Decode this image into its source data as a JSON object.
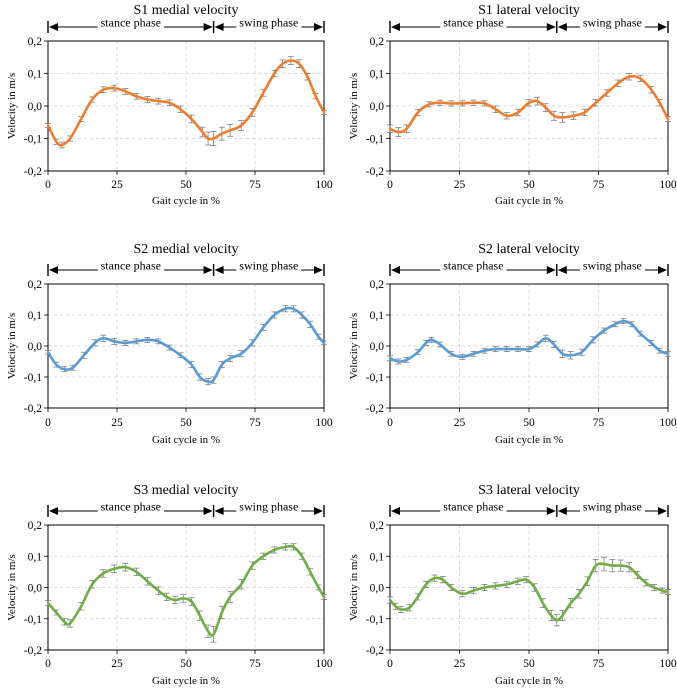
{
  "chart_data": [
    {
      "type": "line",
      "title": "S1 medial velocity",
      "xlabel": "Gait cycle in %",
      "ylabel": "Velocity in m/s",
      "xlim": [
        0,
        100
      ],
      "ylim": [
        -0.2,
        0.2
      ],
      "x_ticks": [
        "0",
        "25",
        "50",
        "75",
        "100"
      ],
      "y_ticks": [
        "-0,2",
        "-0,1",
        "0,0",
        "0,1",
        "0,2"
      ],
      "grid": true,
      "color": "#ED7D31",
      "phases": [
        {
          "label": "stance phase",
          "from": 0,
          "to": 60
        },
        {
          "label": "swing phase",
          "from": 60,
          "to": 100
        }
      ],
      "series": [
        {
          "x": [
            0,
            3,
            5,
            8,
            12,
            16,
            20,
            24,
            28,
            32,
            36,
            40,
            44,
            48,
            52,
            56,
            58,
            60,
            63,
            66,
            70,
            74,
            78,
            82,
            85,
            88,
            91,
            94,
            97,
            100
          ],
          "values": [
            -0.06,
            -0.11,
            -0.12,
            -0.1,
            -0.04,
            0.02,
            0.05,
            0.055,
            0.045,
            0.03,
            0.02,
            0.015,
            0.01,
            -0.01,
            -0.04,
            -0.08,
            -0.1,
            -0.1,
            -0.085,
            -0.075,
            -0.06,
            -0.02,
            0.04,
            0.1,
            0.13,
            0.14,
            0.13,
            0.09,
            0.03,
            -0.02
          ],
          "error": [
            0.006,
            0.008,
            0.009,
            0.008,
            0.008,
            0.008,
            0.009,
            0.009,
            0.009,
            0.009,
            0.009,
            0.009,
            0.009,
            0.01,
            0.012,
            0.015,
            0.02,
            0.022,
            0.02,
            0.018,
            0.015,
            0.012,
            0.01,
            0.01,
            0.012,
            0.012,
            0.012,
            0.01,
            0.008,
            0.006
          ]
        }
      ]
    },
    {
      "type": "line",
      "title": "S1 lateral velocity",
      "xlabel": "Gait cycle in %",
      "ylabel": "Velocity in m/s",
      "xlim": [
        0,
        100
      ],
      "ylim": [
        -0.2,
        0.2
      ],
      "x_ticks": [
        "0",
        "25",
        "50",
        "75",
        "100"
      ],
      "y_ticks": [
        "-0,2",
        "-0,1",
        "0,0",
        "0,1",
        "0,2"
      ],
      "grid": true,
      "color": "#ED7D31",
      "phases": [
        {
          "label": "stance phase",
          "from": 0,
          "to": 60
        },
        {
          "label": "swing phase",
          "from": 60,
          "to": 100
        }
      ],
      "series": [
        {
          "x": [
            0,
            3,
            6,
            10,
            14,
            18,
            22,
            26,
            30,
            34,
            38,
            42,
            46,
            50,
            53,
            56,
            59,
            62,
            66,
            70,
            74,
            78,
            82,
            86,
            90,
            94,
            97,
            100
          ],
          "values": [
            -0.07,
            -0.08,
            -0.07,
            -0.02,
            0.005,
            0.01,
            0.008,
            0.008,
            0.01,
            0.008,
            -0.01,
            -0.03,
            -0.02,
            0.01,
            0.015,
            -0.005,
            -0.03,
            -0.035,
            -0.03,
            -0.02,
            0.01,
            0.04,
            0.07,
            0.09,
            0.085,
            0.05,
            0.01,
            -0.04
          ],
          "error": [
            0.012,
            0.014,
            0.012,
            0.01,
            0.008,
            0.008,
            0.008,
            0.008,
            0.008,
            0.008,
            0.01,
            0.01,
            0.01,
            0.01,
            0.012,
            0.012,
            0.014,
            0.015,
            0.012,
            0.01,
            0.01,
            0.01,
            0.01,
            0.01,
            0.01,
            0.01,
            0.01,
            0.008
          ]
        }
      ]
    },
    {
      "type": "line",
      "title": "S2 medial velocity",
      "xlabel": "Gait cycle in %",
      "ylabel": "Velocity in m/s",
      "xlim": [
        0,
        100
      ],
      "ylim": [
        -0.2,
        0.2
      ],
      "x_ticks": [
        "0",
        "25",
        "50",
        "75",
        "100"
      ],
      "y_ticks": [
        "-0,2",
        "-0,1",
        "0,0",
        "0,1",
        "0,2"
      ],
      "grid": true,
      "color": "#5B9BD5",
      "phases": [
        {
          "label": "stance phase",
          "from": 0,
          "to": 60
        },
        {
          "label": "swing phase",
          "from": 60,
          "to": 100
        }
      ],
      "series": [
        {
          "x": [
            0,
            3,
            6,
            9,
            13,
            17,
            20,
            24,
            28,
            32,
            36,
            40,
            44,
            48,
            52,
            55,
            58,
            60,
            63,
            66,
            70,
            74,
            78,
            82,
            86,
            89,
            92,
            95,
            98,
            100
          ],
          "values": [
            -0.02,
            -0.06,
            -0.075,
            -0.07,
            -0.03,
            0.01,
            0.025,
            0.015,
            0.01,
            0.015,
            0.02,
            0.015,
            -0.005,
            -0.03,
            -0.06,
            -0.1,
            -0.115,
            -0.11,
            -0.06,
            -0.04,
            -0.025,
            0.01,
            0.06,
            0.1,
            0.12,
            0.12,
            0.1,
            0.07,
            0.03,
            0.01
          ],
          "error": [
            0.006,
            0.008,
            0.008,
            0.008,
            0.01,
            0.01,
            0.01,
            0.01,
            0.008,
            0.008,
            0.008,
            0.008,
            0.008,
            0.008,
            0.01,
            0.01,
            0.01,
            0.01,
            0.01,
            0.01,
            0.01,
            0.01,
            0.01,
            0.01,
            0.01,
            0.01,
            0.01,
            0.01,
            0.008,
            0.006
          ]
        }
      ]
    },
    {
      "type": "line",
      "title": "S2 lateral velocity",
      "xlabel": "Gait cycle in %",
      "ylabel": "Velocity in m/s",
      "xlim": [
        0,
        100
      ],
      "ylim": [
        -0.2,
        0.2
      ],
      "x_ticks": [
        "0",
        "25",
        "50",
        "75",
        "100"
      ],
      "y_ticks": [
        "-0,2",
        "-0,1",
        "0,0",
        "0,1",
        "0,2"
      ],
      "grid": true,
      "color": "#5B9BD5",
      "phases": [
        {
          "label": "stance phase",
          "from": 0,
          "to": 60
        },
        {
          "label": "swing phase",
          "from": 60,
          "to": 100
        }
      ],
      "series": [
        {
          "x": [
            0,
            3,
            6,
            10,
            13,
            15,
            18,
            22,
            26,
            30,
            34,
            38,
            42,
            46,
            50,
            53,
            56,
            59,
            62,
            65,
            69,
            73,
            77,
            81,
            84,
            87,
            90,
            94,
            97,
            100
          ],
          "values": [
            -0.04,
            -0.05,
            -0.045,
            -0.02,
            0.01,
            0.02,
            0.005,
            -0.025,
            -0.035,
            -0.025,
            -0.015,
            -0.01,
            -0.01,
            -0.01,
            -0.01,
            0.005,
            0.025,
            0.005,
            -0.025,
            -0.03,
            -0.02,
            0.02,
            0.05,
            0.07,
            0.08,
            0.07,
            0.04,
            0.01,
            -0.015,
            -0.025
          ],
          "error": [
            0.008,
            0.008,
            0.008,
            0.008,
            0.008,
            0.008,
            0.008,
            0.008,
            0.008,
            0.008,
            0.008,
            0.008,
            0.008,
            0.008,
            0.008,
            0.008,
            0.01,
            0.01,
            0.012,
            0.012,
            0.01,
            0.01,
            0.008,
            0.008,
            0.008,
            0.008,
            0.008,
            0.008,
            0.008,
            0.008
          ]
        }
      ]
    },
    {
      "type": "line",
      "title": "S3 medial velocity",
      "xlabel": "Gait cycle in %",
      "ylabel": "Velocity in m/s",
      "xlim": [
        0,
        100
      ],
      "ylim": [
        -0.2,
        0.2
      ],
      "x_ticks": [
        "0",
        "25",
        "50",
        "75",
        "100"
      ],
      "y_ticks": [
        "-0,2",
        "-0,1",
        "0,0",
        "0,1",
        "0,2"
      ],
      "grid": true,
      "color": "#70AD47",
      "phases": [
        {
          "label": "stance phase",
          "from": 0,
          "to": 60
        },
        {
          "label": "swing phase",
          "from": 60,
          "to": 100
        }
      ],
      "series": [
        {
          "x": [
            0,
            3,
            6,
            8,
            12,
            16,
            20,
            24,
            28,
            32,
            36,
            40,
            43,
            46,
            49,
            52,
            55,
            58,
            60,
            63,
            66,
            70,
            74,
            78,
            82,
            86,
            89,
            92,
            95,
            98,
            100
          ],
          "values": [
            -0.05,
            -0.08,
            -0.11,
            -0.115,
            -0.06,
            0.01,
            0.045,
            0.06,
            0.065,
            0.05,
            0.02,
            -0.01,
            -0.03,
            -0.04,
            -0.035,
            -0.045,
            -0.09,
            -0.14,
            -0.15,
            -0.08,
            -0.03,
            0.01,
            0.07,
            0.1,
            0.12,
            0.13,
            0.13,
            0.1,
            0.05,
            0.0,
            -0.03
          ],
          "error": [
            0.008,
            0.008,
            0.01,
            0.012,
            0.012,
            0.012,
            0.012,
            0.012,
            0.012,
            0.012,
            0.012,
            0.012,
            0.012,
            0.012,
            0.012,
            0.012,
            0.015,
            0.02,
            0.025,
            0.02,
            0.018,
            0.015,
            0.012,
            0.01,
            0.01,
            0.01,
            0.01,
            0.01,
            0.01,
            0.008,
            0.008
          ]
        }
      ]
    },
    {
      "type": "line",
      "title": "S3 lateral velocity",
      "xlabel": "Gait cycle in %",
      "ylabel": "Velocity in m/s",
      "xlim": [
        0,
        100
      ],
      "ylim": [
        -0.2,
        0.2
      ],
      "x_ticks": [
        "0",
        "25",
        "50",
        "75",
        "100"
      ],
      "y_ticks": [
        "-0,2",
        "-0,1",
        "0,0",
        "0,1",
        "0,2"
      ],
      "grid": true,
      "color": "#70AD47",
      "phases": [
        {
          "label": "stance phase",
          "from": 0,
          "to": 60
        },
        {
          "label": "swing phase",
          "from": 60,
          "to": 100
        }
      ],
      "series": [
        {
          "x": [
            0,
            2,
            4,
            7,
            10,
            13,
            16,
            19,
            22,
            26,
            30,
            34,
            38,
            42,
            46,
            49,
            52,
            55,
            58,
            60,
            62,
            65,
            68,
            71,
            74,
            77,
            80,
            83,
            86,
            89,
            92,
            95,
            98,
            100
          ],
          "values": [
            -0.04,
            -0.06,
            -0.07,
            -0.065,
            -0.03,
            0.01,
            0.03,
            0.025,
            0.0,
            -0.02,
            -0.01,
            0.0,
            0.005,
            0.01,
            0.02,
            0.025,
            0.0,
            -0.05,
            -0.09,
            -0.105,
            -0.09,
            -0.05,
            -0.02,
            0.02,
            0.07,
            0.075,
            0.07,
            0.07,
            0.065,
            0.04,
            0.015,
            0.0,
            -0.01,
            -0.015
          ],
          "error": [
            0.01,
            0.01,
            0.01,
            0.01,
            0.01,
            0.01,
            0.01,
            0.01,
            0.01,
            0.01,
            0.01,
            0.01,
            0.01,
            0.01,
            0.01,
            0.01,
            0.012,
            0.014,
            0.016,
            0.018,
            0.016,
            0.015,
            0.014,
            0.014,
            0.02,
            0.022,
            0.02,
            0.018,
            0.015,
            0.012,
            0.01,
            0.01,
            0.008,
            0.008
          ]
        }
      ]
    }
  ]
}
